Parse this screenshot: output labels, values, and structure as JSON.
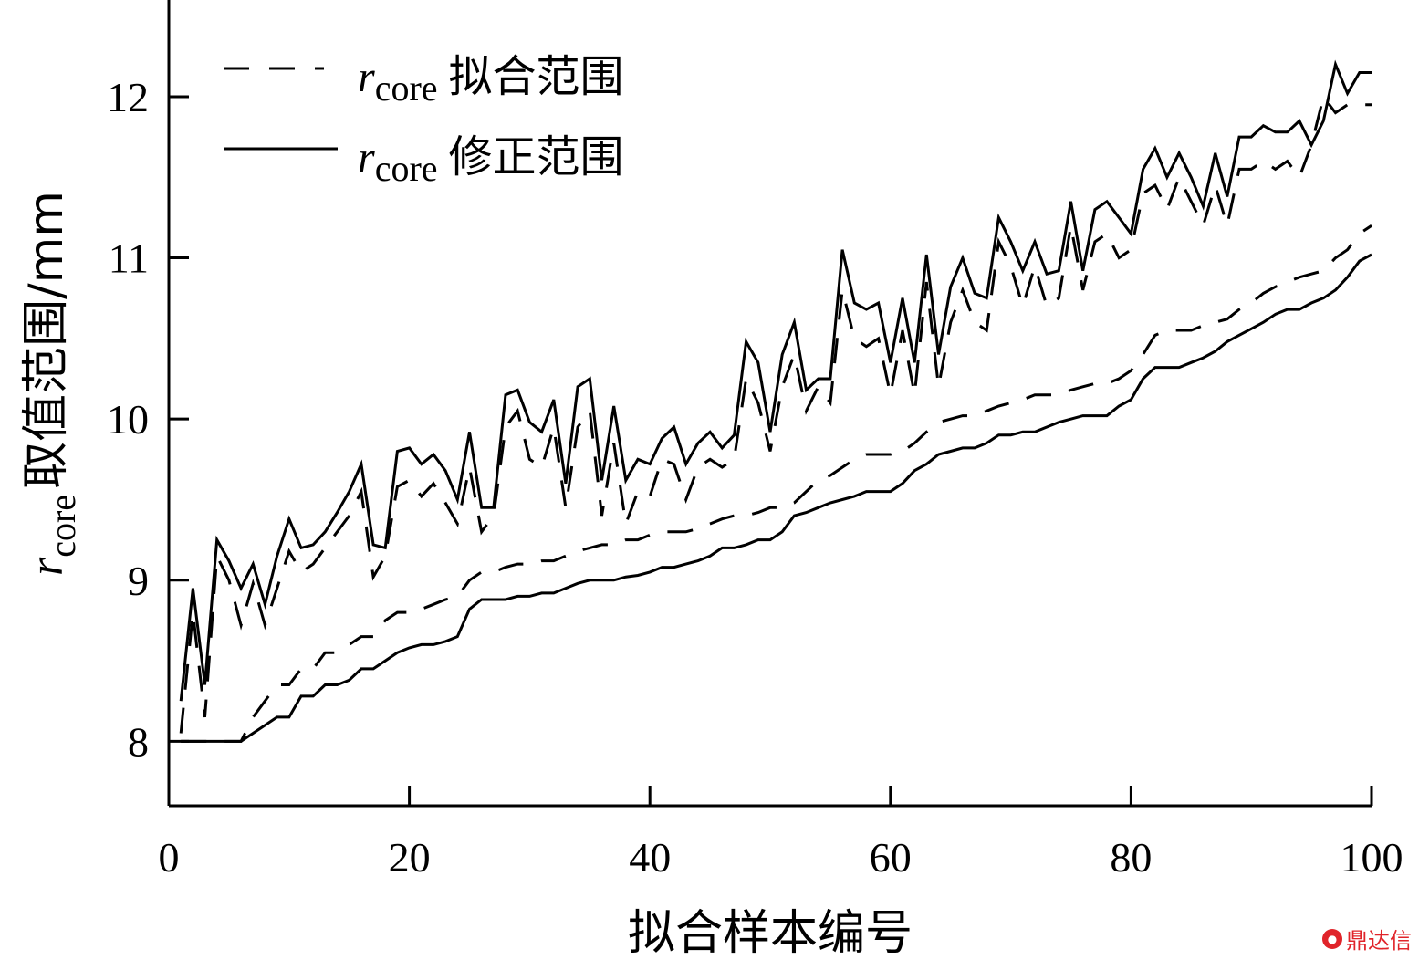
{
  "chart_data": {
    "type": "line",
    "xlabel": "拟合样本编号",
    "ylabel": {
      "var": "r",
      "sub": "core",
      "text": "取值范围/mm"
    },
    "xlim": [
      0,
      100
    ],
    "ylim": [
      7.6,
      12.6
    ],
    "xticks": [
      0,
      20,
      40,
      60,
      80,
      100
    ],
    "yticks": [
      8,
      9,
      10,
      11,
      12
    ],
    "grid": false,
    "legend_position": "top-left",
    "series": [
      {
        "name": {
          "var": "r",
          "sub": "core",
          "text": "拟合范围"
        },
        "style": "dashed",
        "x": [
          1,
          2,
          3,
          4,
          5,
          6,
          7,
          8,
          9,
          10,
          11,
          12,
          13,
          14,
          15,
          16,
          17,
          18,
          19,
          20,
          21,
          22,
          23,
          24,
          25,
          26,
          27,
          28,
          29,
          30,
          31,
          32,
          33,
          34,
          35,
          36,
          37,
          38,
          39,
          40,
          41,
          42,
          43,
          44,
          45,
          46,
          47,
          48,
          49,
          50,
          51,
          52,
          53,
          54,
          55,
          56,
          57,
          58,
          59,
          60,
          61,
          62,
          63,
          64,
          65,
          66,
          67,
          68,
          69,
          70,
          71,
          72,
          73,
          74,
          75,
          76,
          77,
          78,
          79,
          80,
          81,
          82,
          83,
          84,
          85,
          86,
          87,
          88,
          89,
          90,
          91,
          92,
          93,
          94,
          95,
          96,
          97,
          98,
          99,
          100
        ],
        "upper": [
          8.05,
          8.8,
          8.15,
          9.15,
          9.0,
          8.72,
          8.98,
          8.72,
          8.95,
          9.18,
          9.05,
          9.1,
          9.2,
          9.3,
          9.4,
          9.55,
          9.02,
          9.15,
          9.58,
          9.62,
          9.52,
          9.6,
          9.48,
          9.35,
          9.7,
          9.3,
          9.4,
          9.95,
          10.05,
          9.75,
          9.7,
          9.95,
          9.45,
          9.95,
          10.05,
          9.4,
          9.85,
          9.35,
          9.55,
          9.52,
          9.75,
          9.72,
          9.5,
          9.7,
          9.75,
          9.7,
          9.75,
          10.25,
          10.1,
          9.8,
          10.2,
          10.4,
          10.05,
          10.2,
          10.1,
          10.8,
          10.5,
          10.45,
          10.5,
          10.15,
          10.55,
          10.15,
          10.85,
          10.2,
          10.6,
          10.8,
          10.6,
          10.55,
          11.1,
          10.95,
          10.7,
          10.95,
          10.7,
          10.75,
          11.2,
          10.8,
          11.1,
          11.15,
          11.0,
          11.05,
          11.4,
          11.45,
          11.3,
          11.5,
          11.35,
          11.2,
          11.45,
          11.2,
          11.55,
          11.55,
          11.6,
          11.55,
          11.6,
          11.5,
          11.7,
          12.0,
          11.9,
          11.95,
          11.95,
          11.95
        ],
        "lower": [
          8.0,
          8.0,
          8.0,
          8.0,
          8.0,
          8.0,
          8.15,
          8.25,
          8.35,
          8.35,
          8.45,
          8.45,
          8.55,
          8.55,
          8.6,
          8.65,
          8.65,
          8.75,
          8.8,
          8.8,
          8.82,
          8.85,
          8.88,
          8.9,
          9.0,
          9.05,
          9.05,
          9.08,
          9.1,
          9.1,
          9.12,
          9.12,
          9.15,
          9.18,
          9.2,
          9.22,
          9.22,
          9.25,
          9.25,
          9.28,
          9.3,
          9.3,
          9.3,
          9.32,
          9.35,
          9.38,
          9.4,
          9.4,
          9.42,
          9.45,
          9.45,
          9.48,
          9.55,
          9.62,
          9.65,
          9.7,
          9.75,
          9.78,
          9.78,
          9.78,
          9.8,
          9.85,
          9.92,
          9.98,
          10.0,
          10.02,
          10.02,
          10.05,
          10.08,
          10.1,
          10.12,
          10.15,
          10.15,
          10.15,
          10.18,
          10.2,
          10.22,
          10.22,
          10.25,
          10.3,
          10.4,
          10.52,
          10.55,
          10.55,
          10.55,
          10.58,
          10.6,
          10.62,
          10.68,
          10.72,
          10.78,
          10.82,
          10.85,
          10.88,
          10.9,
          10.92,
          11.0,
          11.05,
          11.15,
          11.2
        ]
      },
      {
        "name": {
          "var": "r",
          "sub": "core",
          "text": "修正范围"
        },
        "style": "solid",
        "x": [
          1,
          2,
          3,
          4,
          5,
          6,
          7,
          8,
          9,
          10,
          11,
          12,
          13,
          14,
          15,
          16,
          17,
          18,
          19,
          20,
          21,
          22,
          23,
          24,
          25,
          26,
          27,
          28,
          29,
          30,
          31,
          32,
          33,
          34,
          35,
          36,
          37,
          38,
          39,
          40,
          41,
          42,
          43,
          44,
          45,
          46,
          47,
          48,
          49,
          50,
          51,
          52,
          53,
          54,
          55,
          56,
          57,
          58,
          59,
          60,
          61,
          62,
          63,
          64,
          65,
          66,
          67,
          68,
          69,
          70,
          71,
          72,
          73,
          74,
          75,
          76,
          77,
          78,
          79,
          80,
          81,
          82,
          83,
          84,
          85,
          86,
          87,
          88,
          89,
          90,
          91,
          92,
          93,
          94,
          95,
          96,
          97,
          98,
          99,
          100
        ],
        "upper": [
          8.25,
          8.95,
          8.35,
          9.25,
          9.12,
          8.95,
          9.1,
          8.85,
          9.15,
          9.38,
          9.2,
          9.22,
          9.3,
          9.42,
          9.55,
          9.72,
          9.22,
          9.2,
          9.8,
          9.82,
          9.72,
          9.78,
          9.68,
          9.5,
          9.92,
          9.45,
          9.45,
          10.15,
          10.18,
          9.98,
          9.92,
          10.12,
          9.6,
          10.2,
          10.25,
          9.62,
          10.08,
          9.62,
          9.75,
          9.72,
          9.88,
          9.95,
          9.72,
          9.85,
          9.92,
          9.82,
          9.9,
          10.48,
          10.35,
          9.92,
          10.4,
          10.6,
          10.18,
          10.25,
          10.25,
          11.05,
          10.72,
          10.68,
          10.72,
          10.35,
          10.75,
          10.35,
          11.02,
          10.4,
          10.82,
          11.0,
          10.78,
          10.75,
          11.25,
          11.1,
          10.92,
          11.1,
          10.9,
          10.92,
          11.35,
          10.92,
          11.3,
          11.35,
          11.25,
          11.15,
          11.55,
          11.68,
          11.5,
          11.65,
          11.5,
          11.32,
          11.65,
          11.38,
          11.75,
          11.75,
          11.82,
          11.78,
          11.78,
          11.85,
          11.7,
          11.85,
          12.2,
          12.02,
          12.15,
          12.15
        ],
        "lower": [
          8.0,
          8.0,
          8.0,
          8.0,
          8.0,
          8.0,
          8.05,
          8.1,
          8.15,
          8.15,
          8.28,
          8.28,
          8.35,
          8.35,
          8.38,
          8.45,
          8.45,
          8.5,
          8.55,
          8.58,
          8.6,
          8.6,
          8.62,
          8.65,
          8.82,
          8.88,
          8.88,
          8.88,
          8.9,
          8.9,
          8.92,
          8.92,
          8.95,
          8.98,
          9.0,
          9.0,
          9.0,
          9.02,
          9.03,
          9.05,
          9.08,
          9.08,
          9.1,
          9.12,
          9.15,
          9.2,
          9.2,
          9.22,
          9.25,
          9.25,
          9.3,
          9.4,
          9.42,
          9.45,
          9.48,
          9.5,
          9.52,
          9.55,
          9.55,
          9.55,
          9.6,
          9.68,
          9.72,
          9.78,
          9.8,
          9.82,
          9.82,
          9.85,
          9.9,
          9.9,
          9.92,
          9.92,
          9.95,
          9.98,
          10.0,
          10.02,
          10.02,
          10.02,
          10.08,
          10.12,
          10.25,
          10.32,
          10.32,
          10.32,
          10.35,
          10.38,
          10.42,
          10.48,
          10.52,
          10.56,
          10.6,
          10.65,
          10.68,
          10.68,
          10.72,
          10.75,
          10.8,
          10.88,
          10.98,
          11.02
        ]
      }
    ]
  },
  "watermark": {
    "icon": "dingdaxin-logo-icon",
    "text": "鼎达信",
    "color": "#e0242a"
  }
}
